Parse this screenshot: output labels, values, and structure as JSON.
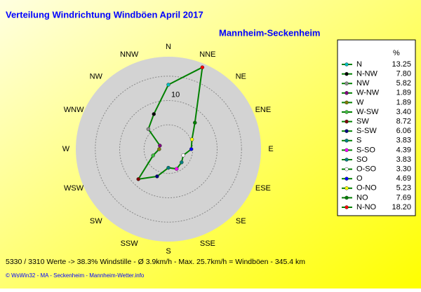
{
  "chart_data": {
    "type": "radar",
    "title": "Verteilung Windrichtung Windböen  April 2017",
    "subtitle": "Mannheim-Seckenheim",
    "axis_labels": [
      "N",
      "NNE",
      "NE",
      "ENE",
      "E",
      "ESE",
      "SE",
      "SSE",
      "S",
      "SSW",
      "SW",
      "WSW",
      "W",
      "WNW",
      "NW",
      "NNW"
    ],
    "rlim": [
      0,
      19
    ],
    "rgrid": [
      5,
      10,
      15
    ],
    "rticks": [
      10
    ],
    "line_color": "#008000",
    "legend_header": "%",
    "categories": [
      "N",
      "N-NW",
      "NW",
      "W-NW",
      "W",
      "W-SW",
      "SW",
      "S-SW",
      "S",
      "S-SO",
      "SO",
      "O-SO",
      "O",
      "O-NO",
      "NO",
      "N-NO"
    ],
    "values": [
      13.25,
      7.8,
      5.82,
      1.89,
      1.89,
      3.4,
      8.72,
      6.06,
      3.83,
      4.39,
      3.83,
      3.3,
      4.69,
      5.23,
      7.69,
      18.2
    ],
    "value_labels": [
      "13.25",
      "7.80",
      "5.82",
      "1.89",
      "1.89",
      "3.40",
      "8.72",
      "6.06",
      "3.83",
      "4.39",
      "3.83",
      "3.30",
      "4.69",
      "5.23",
      "7.69",
      "18.20"
    ],
    "colors": [
      "#00c0c0",
      "#000000",
      "#909090",
      "#800080",
      "#808000",
      "#40c040",
      "#800000",
      "#000080",
      "#008080",
      "#ff00ff",
      "#008080",
      "#ffffff",
      "#0000ff",
      "#ffff00",
      "#008000",
      "#ff0000"
    ],
    "footer": [
      "5330 / 3310 Werte  -> 38.3% Windstille   -   Ø 3.9km/h -  Max. 25.7km/h = Windböen   -   345.4 km",
      "© WsWin32  -  MA - Seckenheim  -  Mannheim-Wetter.info"
    ]
  }
}
